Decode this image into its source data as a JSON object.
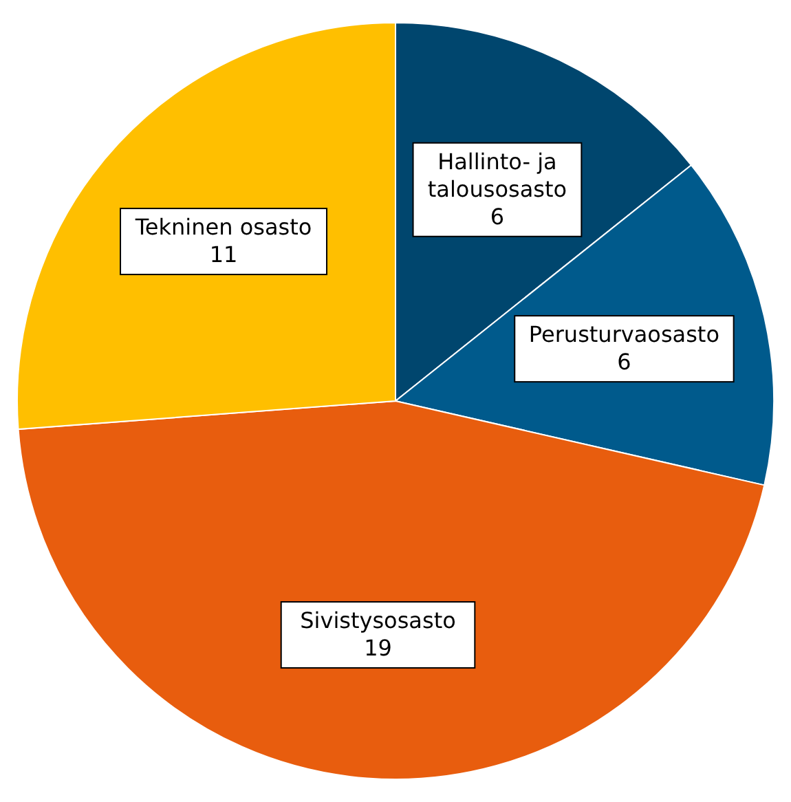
{
  "chart_data": {
    "type": "pie",
    "categories": [
      "Hallinto- ja talousosasto",
      "Perusturvaosasto",
      "Sivistysosasto",
      "Tekninen osasto"
    ],
    "values": [
      6,
      6,
      19,
      11
    ],
    "colors": [
      "#00466e",
      "#005a8c",
      "#e85d0e",
      "#ffbf00"
    ],
    "data_labels": true
  }
}
